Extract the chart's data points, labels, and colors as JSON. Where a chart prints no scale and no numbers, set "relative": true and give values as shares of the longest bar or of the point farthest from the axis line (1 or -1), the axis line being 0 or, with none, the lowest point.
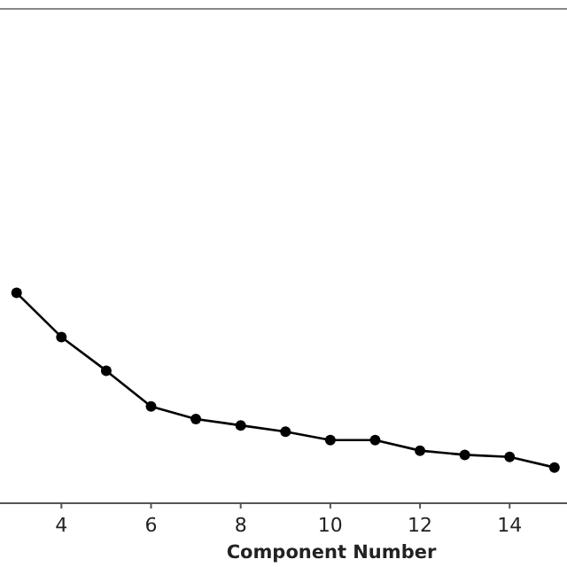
{
  "chart_data": {
    "type": "line",
    "xlabel": "Component Number",
    "relative": true,
    "x": [
      3,
      4,
      5,
      6,
      7,
      8,
      9,
      10,
      11,
      12,
      13,
      14,
      15
    ],
    "series": [
      {
        "color": "#000000",
        "values": [
          1,
          0.79,
          0.63,
          0.46,
          0.4,
          0.37,
          0.34,
          0.3,
          0.3,
          0.25,
          0.23,
          0.22,
          0.17
        ]
      }
    ],
    "xlim": [
      2.63,
      15.28
    ],
    "xticks": [
      4,
      6,
      8,
      10,
      12,
      14
    ],
    "marker": "circle",
    "line_style": "solid",
    "grid": false
  }
}
